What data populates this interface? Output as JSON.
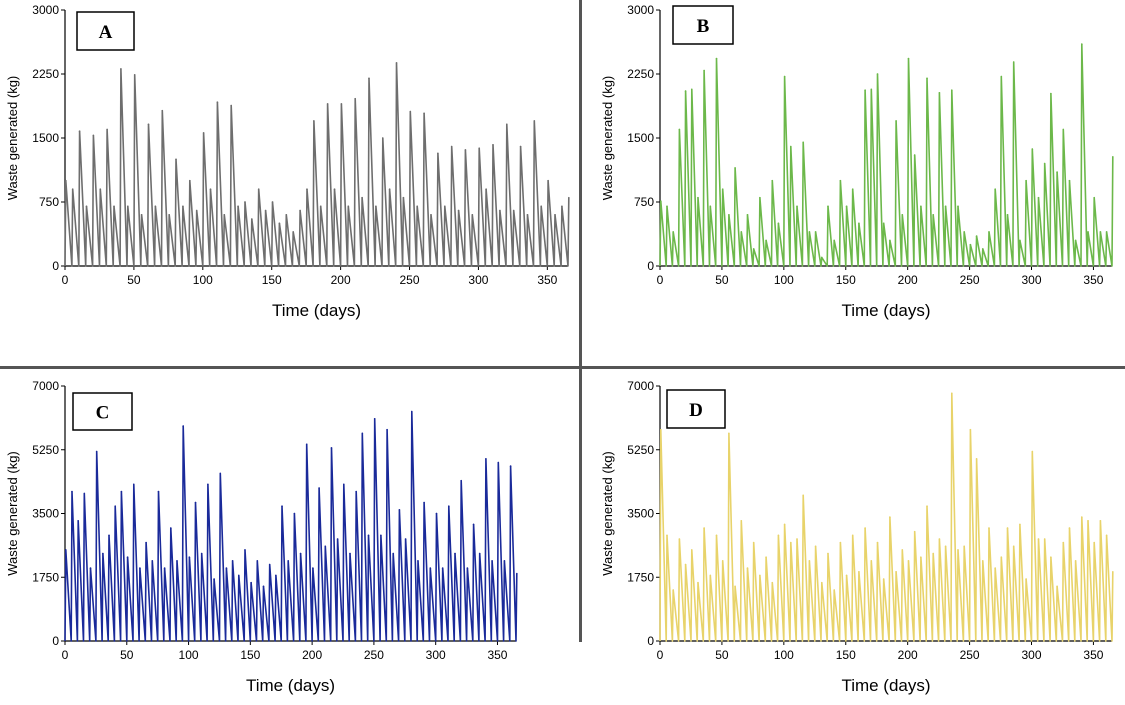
{
  "chart_data": [
    {
      "type": "line",
      "panel_label": "A",
      "color": "#6e6e6e",
      "xlabel": "Time (days)",
      "ylabel": "Waste generated (kg)",
      "xlim": [
        0,
        365
      ],
      "ylim": [
        0,
        3000
      ],
      "xticks": [
        "0",
        "50",
        "100",
        "150",
        "200",
        "250",
        "300",
        "350"
      ],
      "yticks": [
        "0",
        "750",
        "1500",
        "2250",
        "3000"
      ],
      "x": [
        0,
        5,
        10,
        15,
        20,
        25,
        30,
        35,
        40,
        45,
        50,
        55,
        60,
        65,
        70,
        75,
        80,
        85,
        90,
        95,
        100,
        105,
        110,
        115,
        120,
        125,
        130,
        135,
        140,
        145,
        150,
        155,
        160,
        165,
        170,
        175,
        180,
        185,
        190,
        195,
        200,
        205,
        210,
        215,
        220,
        225,
        230,
        235,
        240,
        245,
        250,
        255,
        260,
        265,
        270,
        275,
        280,
        285,
        290,
        295,
        300,
        305,
        310,
        315,
        320,
        325,
        330,
        335,
        340,
        345,
        350,
        355,
        360,
        365
      ],
      "values": [
        1000,
        900,
        1580,
        700,
        1530,
        900,
        1600,
        700,
        2310,
        700,
        2240,
        600,
        1660,
        700,
        1820,
        600,
        1250,
        700,
        1000,
        650,
        1560,
        900,
        1920,
        600,
        1880,
        700,
        750,
        550,
        900,
        650,
        750,
        500,
        600,
        400,
        650,
        900,
        1700,
        700,
        1900,
        900,
        1900,
        700,
        1960,
        800,
        2200,
        700,
        1500,
        900,
        2380,
        800,
        1810,
        700,
        1790,
        600,
        1320,
        700,
        1400,
        650,
        1360,
        600,
        1380,
        900,
        1420,
        650,
        1660,
        650,
        1400,
        600,
        1700,
        700,
        1000,
        600,
        700,
        800
      ]
    },
    {
      "type": "line",
      "panel_label": "B",
      "color": "#6cb84a",
      "xlabel": "Time (days)",
      "ylabel": "Waste generated (kg)",
      "xlim": [
        0,
        365
      ],
      "ylim": [
        0,
        3000
      ],
      "xticks": [
        "0",
        "50",
        "100",
        "150",
        "200",
        "250",
        "300",
        "350"
      ],
      "yticks": [
        "0",
        "750",
        "1500",
        "2250",
        "3000"
      ],
      "x": [
        0,
        5,
        10,
        15,
        20,
        25,
        30,
        35,
        40,
        45,
        50,
        55,
        60,
        65,
        70,
        75,
        80,
        85,
        90,
        95,
        100,
        105,
        110,
        115,
        120,
        125,
        130,
        135,
        140,
        145,
        150,
        155,
        160,
        165,
        170,
        175,
        180,
        185,
        190,
        195,
        200,
        205,
        210,
        215,
        220,
        225,
        230,
        235,
        240,
        245,
        250,
        255,
        260,
        265,
        270,
        275,
        280,
        285,
        290,
        295,
        300,
        305,
        310,
        315,
        320,
        325,
        330,
        335,
        340,
        345,
        350,
        355,
        360,
        365
      ],
      "values": [
        760,
        700,
        400,
        1600,
        2050,
        2070,
        800,
        2290,
        700,
        2430,
        900,
        600,
        1150,
        400,
        600,
        200,
        800,
        300,
        1000,
        500,
        2220,
        1400,
        700,
        1450,
        400,
        400,
        100,
        700,
        300,
        1000,
        700,
        900,
        500,
        2060,
        2070,
        2250,
        500,
        300,
        1700,
        600,
        2430,
        1300,
        700,
        2200,
        600,
        2030,
        700,
        2060,
        700,
        400,
        250,
        350,
        200,
        400,
        900,
        2220,
        600,
        2390,
        300,
        1000,
        1370,
        800,
        1200,
        2020,
        1100,
        1600,
        1000,
        300,
        2600,
        400,
        800,
        400,
        400,
        1280
      ]
    },
    {
      "type": "line",
      "panel_label": "C",
      "color": "#1a2a9a",
      "xlabel": "Time (days)",
      "ylabel": "Waste generated (kg)",
      "xlim": [
        0,
        365
      ],
      "ylim": [
        0,
        7000
      ],
      "xticks": [
        "0",
        "50",
        "100",
        "150",
        "200",
        "250",
        "300",
        "350"
      ],
      "yticks": [
        "0",
        "1750",
        "3500",
        "5250",
        "7000"
      ],
      "x": [
        0,
        5,
        10,
        15,
        20,
        25,
        30,
        35,
        40,
        45,
        50,
        55,
        60,
        65,
        70,
        75,
        80,
        85,
        90,
        95,
        100,
        105,
        110,
        115,
        120,
        125,
        130,
        135,
        140,
        145,
        150,
        155,
        160,
        165,
        170,
        175,
        180,
        185,
        190,
        195,
        200,
        205,
        210,
        215,
        220,
        225,
        230,
        235,
        240,
        245,
        250,
        255,
        260,
        265,
        270,
        275,
        280,
        285,
        290,
        295,
        300,
        305,
        310,
        315,
        320,
        325,
        330,
        335,
        340,
        345,
        350,
        355,
        360,
        365
      ],
      "values": [
        2500,
        4100,
        3300,
        4050,
        2000,
        5200,
        2400,
        2900,
        3700,
        4100,
        2300,
        4300,
        2000,
        2700,
        2200,
        4100,
        2000,
        3100,
        2200,
        5900,
        2300,
        3800,
        2400,
        4300,
        1700,
        4600,
        2000,
        2200,
        1800,
        2500,
        1600,
        2200,
        1500,
        2100,
        1800,
        3700,
        2200,
        3500,
        2400,
        5400,
        2000,
        4200,
        2600,
        5300,
        2800,
        4300,
        2400,
        4100,
        5700,
        2900,
        6100,
        2900,
        5800,
        2400,
        3600,
        2800,
        6300,
        2200,
        3800,
        2000,
        3500,
        2000,
        3700,
        2400,
        4400,
        2000,
        3200,
        2400,
        5000,
        2200,
        4900,
        2200,
        4800,
        1850
      ]
    },
    {
      "type": "line",
      "panel_label": "D",
      "color": "#e8d36a",
      "xlabel": "Time (days)",
      "ylabel": "Waste generated (kg)",
      "xlim": [
        0,
        365
      ],
      "ylim": [
        0,
        7000
      ],
      "xticks": [
        "0",
        "50",
        "100",
        "150",
        "200",
        "250",
        "300",
        "350"
      ],
      "yticks": [
        "0",
        "1750",
        "3500",
        "5250",
        "7000"
      ],
      "x": [
        0,
        5,
        10,
        15,
        20,
        25,
        30,
        35,
        40,
        45,
        50,
        55,
        60,
        65,
        70,
        75,
        80,
        85,
        90,
        95,
        100,
        105,
        110,
        115,
        120,
        125,
        130,
        135,
        140,
        145,
        150,
        155,
        160,
        165,
        170,
        175,
        180,
        185,
        190,
        195,
        200,
        205,
        210,
        215,
        220,
        225,
        230,
        235,
        240,
        245,
        250,
        255,
        260,
        265,
        270,
        275,
        280,
        285,
        290,
        295,
        300,
        305,
        310,
        315,
        320,
        325,
        330,
        335,
        340,
        345,
        350,
        355,
        360,
        365
      ],
      "values": [
        5800,
        2900,
        1400,
        2800,
        2100,
        2500,
        1600,
        3100,
        1800,
        2900,
        2200,
        5700,
        1500,
        3300,
        2000,
        2700,
        1800,
        2300,
        1600,
        2900,
        3200,
        2700,
        2800,
        4000,
        2200,
        2600,
        1600,
        2400,
        1400,
        2700,
        1800,
        2900,
        1900,
        3100,
        2200,
        2700,
        1700,
        3400,
        1900,
        2500,
        2200,
        3000,
        2300,
        3700,
        2400,
        2800,
        2600,
        6800,
        2500,
        2600,
        5800,
        5000,
        2200,
        3100,
        2000,
        2300,
        3100,
        2600,
        3200,
        1700,
        5200,
        2800,
        2800,
        2300,
        1500,
        2700,
        3100,
        2200,
        3400,
        3300,
        2700,
        3300,
        2900,
        1900
      ]
    }
  ]
}
